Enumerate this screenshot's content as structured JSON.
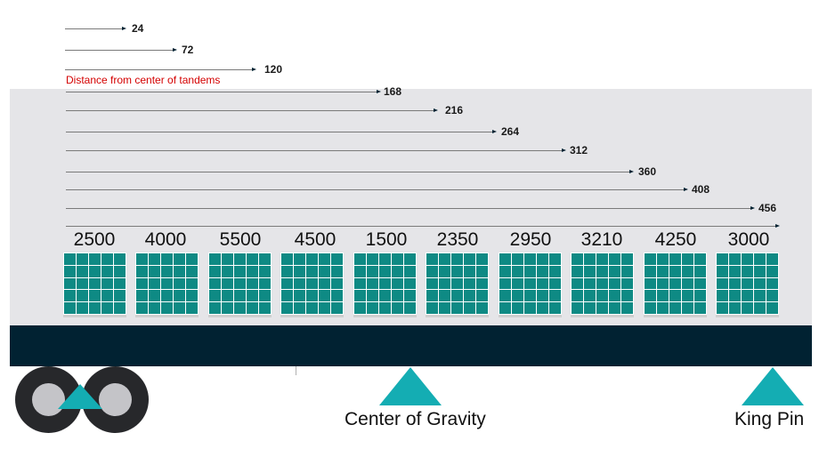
{
  "distance_caption": "Distance from center of tandems",
  "distances": [
    "24",
    "72",
    "120",
    "168",
    "216",
    "264",
    "312",
    "360",
    "408",
    "456"
  ],
  "weights": [
    "2500",
    "4000",
    "5500",
    "4500",
    "1500",
    "2350",
    "2950",
    "3210",
    "4250",
    "3000"
  ],
  "labels": {
    "center_of_gravity": "Center of Gravity",
    "king_pin": "King Pin"
  },
  "colors": {
    "trailer_background": "#e5e5e8",
    "deck": "#012232",
    "pallet": "#0e8a84",
    "marker": "#14adb3",
    "caption": "#d40000"
  }
}
